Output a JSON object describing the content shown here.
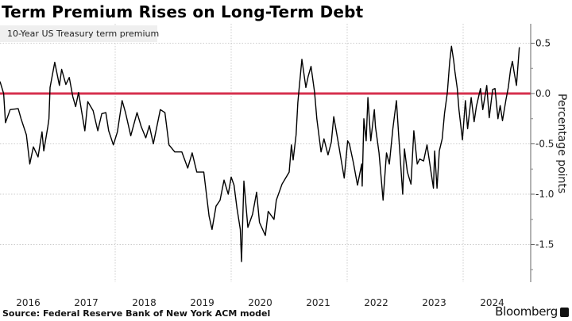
{
  "title": "Term Premium Rises on Long-Term Debt",
  "source": "Source: Federal Reserve Bank of New York ACM model",
  "brand": "Bloomberg",
  "colors": {
    "series": "#000000",
    "zero_line": "#d6304e",
    "grid": "#cccccc"
  },
  "chart_data": {
    "type": "line",
    "title": "Term Premium Rises on Long-Term Debt",
    "ylabel": "Percentage points",
    "xlabel": "",
    "ylim": [
      -1.85,
      0.7
    ],
    "x_tick_labels": [
      "2016",
      "2017",
      "2018",
      "2019",
      "2020",
      "2021",
      "2022",
      "2023",
      "2024"
    ],
    "y_ticks": [
      0.5,
      0.0,
      -0.5,
      -1.0,
      -1.5
    ],
    "y_tick_labels": [
      "0.5",
      "0.0",
      "-0.5",
      "-1.0",
      "-1.5"
    ],
    "grid": true,
    "legend": "top-left",
    "reference_line": 0.0,
    "series": [
      {
        "name": "10-Year US Treasury term premium",
        "points": [
          [
            "2016-01-06",
            0.12
          ],
          [
            "2016-01-29",
            0.0
          ],
          [
            "2016-02-10",
            -0.29
          ],
          [
            "2016-03-09",
            -0.16
          ],
          [
            "2016-04-29",
            -0.15
          ],
          [
            "2016-05-17",
            -0.25
          ],
          [
            "2016-06-20",
            -0.41
          ],
          [
            "2016-07-11",
            -0.7
          ],
          [
            "2016-08-03",
            -0.53
          ],
          [
            "2016-09-02",
            -0.63
          ],
          [
            "2016-09-27",
            -0.38
          ],
          [
            "2016-10-08",
            -0.57
          ],
          [
            "2016-11-03",
            -0.33
          ],
          [
            "2016-11-10",
            -0.25
          ],
          [
            "2016-11-17",
            0.06
          ],
          [
            "2016-12-16",
            0.31
          ],
          [
            "2017-01-15",
            0.08
          ],
          [
            "2017-01-29",
            0.24
          ],
          [
            "2017-02-25",
            0.09
          ],
          [
            "2017-03-16",
            0.16
          ],
          [
            "2017-04-08",
            -0.03
          ],
          [
            "2017-04-26",
            -0.13
          ],
          [
            "2017-05-14",
            0.01
          ],
          [
            "2017-06-02",
            -0.17
          ],
          [
            "2017-06-23",
            -0.37
          ],
          [
            "2017-07-11",
            -0.08
          ],
          [
            "2017-08-14",
            -0.17
          ],
          [
            "2017-09-13",
            -0.37
          ],
          [
            "2017-10-08",
            -0.2
          ],
          [
            "2017-11-03",
            -0.19
          ],
          [
            "2017-11-21",
            -0.37
          ],
          [
            "2017-12-20",
            -0.51
          ],
          [
            "2018-01-15",
            -0.38
          ],
          [
            "2018-02-14",
            -0.07
          ],
          [
            "2018-03-05",
            -0.19
          ],
          [
            "2018-04-08",
            -0.42
          ],
          [
            "2018-05-17",
            -0.19
          ],
          [
            "2018-06-13",
            -0.33
          ],
          [
            "2018-07-11",
            -0.44
          ],
          [
            "2018-08-03",
            -0.32
          ],
          [
            "2018-08-28",
            -0.5
          ],
          [
            "2018-10-11",
            -0.16
          ],
          [
            "2018-11-10",
            -0.19
          ],
          [
            "2018-12-05",
            -0.51
          ],
          [
            "2019-01-11",
            -0.58
          ],
          [
            "2019-02-25",
            -0.58
          ],
          [
            "2019-04-01",
            -0.74
          ],
          [
            "2019-04-29",
            -0.59
          ],
          [
            "2019-05-28",
            -0.78
          ],
          [
            "2019-07-11",
            -0.78
          ],
          [
            "2019-08-14",
            -1.22
          ],
          [
            "2019-09-02",
            -1.35
          ],
          [
            "2019-09-27",
            -1.12
          ],
          [
            "2019-10-22",
            -1.06
          ],
          [
            "2019-11-17",
            -0.86
          ],
          [
            "2019-12-13",
            -1.0
          ],
          [
            "2020-01-01",
            -0.83
          ],
          [
            "2020-01-19",
            -0.91
          ],
          [
            "2020-02-07",
            -1.14
          ],
          [
            "2020-02-28",
            -1.35
          ],
          [
            "2020-03-05",
            -1.67
          ],
          [
            "2020-03-20",
            -0.87
          ],
          [
            "2020-04-15",
            -1.33
          ],
          [
            "2020-05-14",
            -1.2
          ],
          [
            "2020-06-09",
            -0.98
          ],
          [
            "2020-06-27",
            -1.28
          ],
          [
            "2020-08-03",
            -1.41
          ],
          [
            "2020-08-21",
            -1.17
          ],
          [
            "2020-09-27",
            -1.25
          ],
          [
            "2020-10-11",
            -1.06
          ],
          [
            "2020-11-17",
            -0.9
          ],
          [
            "2020-12-13",
            -0.83
          ],
          [
            "2021-01-01",
            -0.78
          ],
          [
            "2021-01-15",
            -0.51
          ],
          [
            "2021-01-26",
            -0.66
          ],
          [
            "2021-02-14",
            -0.41
          ],
          [
            "2021-02-25",
            -0.09
          ],
          [
            "2021-03-05",
            0.09
          ],
          [
            "2021-03-20",
            0.34
          ],
          [
            "2021-04-15",
            0.06
          ],
          [
            "2021-04-29",
            0.17
          ],
          [
            "2021-05-17",
            0.27
          ],
          [
            "2021-06-09",
            0.01
          ],
          [
            "2021-06-23",
            -0.25
          ],
          [
            "2021-07-19",
            -0.58
          ],
          [
            "2021-08-07",
            -0.45
          ],
          [
            "2021-09-02",
            -0.61
          ],
          [
            "2021-09-23",
            -0.48
          ],
          [
            "2021-10-08",
            -0.23
          ],
          [
            "2021-11-03",
            -0.46
          ],
          [
            "2021-12-13",
            -0.84
          ],
          [
            "2022-01-04",
            -0.47
          ],
          [
            "2022-01-15",
            -0.5
          ],
          [
            "2022-02-10",
            -0.69
          ],
          [
            "2022-03-05",
            -0.91
          ],
          [
            "2022-04-01",
            -0.7
          ],
          [
            "2022-04-04",
            -0.92
          ],
          [
            "2022-04-15",
            -0.25
          ],
          [
            "2022-04-29",
            -0.47
          ],
          [
            "2022-05-10",
            -0.04
          ],
          [
            "2022-05-28",
            -0.47
          ],
          [
            "2022-06-20",
            -0.16
          ],
          [
            "2022-06-27",
            -0.33
          ],
          [
            "2022-07-19",
            -0.59
          ],
          [
            "2022-08-14",
            -1.06
          ],
          [
            "2022-09-05",
            -0.59
          ],
          [
            "2022-09-23",
            -0.7
          ],
          [
            "2022-10-15",
            -0.35
          ],
          [
            "2022-11-07",
            -0.07
          ],
          [
            "2022-11-21",
            -0.41
          ],
          [
            "2022-12-16",
            -1.0
          ],
          [
            "2022-12-27",
            -0.55
          ],
          [
            "2023-01-15",
            -0.78
          ],
          [
            "2023-02-07",
            -0.9
          ],
          [
            "2023-02-25",
            -0.37
          ],
          [
            "2023-03-16",
            -0.7
          ],
          [
            "2023-04-01",
            -0.65
          ],
          [
            "2023-04-26",
            -0.67
          ],
          [
            "2023-05-17",
            -0.51
          ],
          [
            "2023-06-09",
            -0.75
          ],
          [
            "2023-06-27",
            -0.94
          ],
          [
            "2023-07-04",
            -0.57
          ],
          [
            "2023-07-19",
            -0.94
          ],
          [
            "2023-08-03",
            -0.57
          ],
          [
            "2023-08-21",
            -0.45
          ],
          [
            "2023-09-05",
            -0.2
          ],
          [
            "2023-09-23",
            0.01
          ],
          [
            "2023-10-08",
            0.32
          ],
          [
            "2023-10-19",
            0.47
          ],
          [
            "2023-11-03",
            0.32
          ],
          [
            "2023-11-10",
            0.22
          ],
          [
            "2023-11-25",
            0.05
          ],
          [
            "2023-12-05",
            -0.16
          ],
          [
            "2023-12-27",
            -0.46
          ],
          [
            "2024-01-15",
            -0.07
          ],
          [
            "2024-01-29",
            -0.35
          ],
          [
            "2024-02-21",
            -0.04
          ],
          [
            "2024-03-09",
            -0.28
          ],
          [
            "2024-03-23",
            -0.13
          ],
          [
            "2024-04-19",
            0.05
          ],
          [
            "2024-05-03",
            -0.16
          ],
          [
            "2024-05-28",
            0.08
          ],
          [
            "2024-06-13",
            -0.24
          ],
          [
            "2024-07-04",
            0.04
          ],
          [
            "2024-07-19",
            0.05
          ],
          [
            "2024-08-07",
            -0.25
          ],
          [
            "2024-08-21",
            -0.12
          ],
          [
            "2024-09-05",
            -0.27
          ],
          [
            "2024-09-27",
            -0.06
          ],
          [
            "2024-10-11",
            0.06
          ],
          [
            "2024-10-26",
            0.24
          ],
          [
            "2024-11-07",
            0.32
          ],
          [
            "2024-11-17",
            0.22
          ],
          [
            "2024-12-02",
            0.08
          ],
          [
            "2024-12-20",
            0.46
          ]
        ]
      }
    ]
  }
}
